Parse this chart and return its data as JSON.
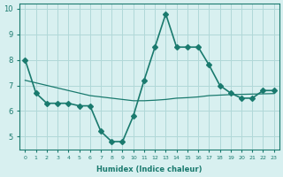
{
  "xlabel": "Humidex (Indice chaleur)",
  "bg_color": "#d8f0f0",
  "line_color": "#1a7a6e",
  "grid_color": "#b0d8d8",
  "x_data": [
    0,
    1,
    2,
    3,
    4,
    5,
    6,
    7,
    8,
    9,
    10,
    11,
    12,
    13,
    14,
    15,
    16,
    17,
    18,
    19,
    20,
    21,
    22,
    23
  ],
  "y_data": [
    8.0,
    6.7,
    6.3,
    6.3,
    6.3,
    6.2,
    6.2,
    5.2,
    4.8,
    4.8,
    5.8,
    7.2,
    8.5,
    9.8,
    8.5,
    8.5,
    8.5,
    7.8,
    7.0,
    6.7,
    6.5,
    6.5,
    6.8,
    6.8
  ],
  "regression_y": [
    7.2,
    7.1,
    7.0,
    6.9,
    6.8,
    6.7,
    6.6,
    6.55,
    6.5,
    6.45,
    6.4,
    6.4,
    6.42,
    6.45,
    6.5,
    6.52,
    6.55,
    6.6,
    6.62,
    6.64,
    6.65,
    6.66,
    6.67,
    6.68
  ],
  "xlim": [
    -0.5,
    23.5
  ],
  "ylim": [
    4.5,
    10.2
  ],
  "yticks": [
    5,
    6,
    7,
    8,
    9,
    10
  ],
  "xticks": [
    0,
    1,
    2,
    3,
    4,
    5,
    6,
    7,
    8,
    9,
    10,
    11,
    12,
    13,
    14,
    15,
    16,
    17,
    18,
    19,
    20,
    21,
    22,
    23
  ],
  "marker": "D",
  "marker_size": 3,
  "line_width": 1.2
}
